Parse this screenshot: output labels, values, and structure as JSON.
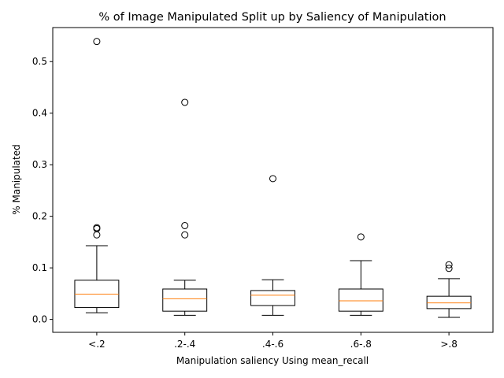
{
  "chart_data": {
    "type": "box",
    "title": "% of Image Manipulated Split up by Saliency of Manipulation",
    "xlabel": "Manipulation saliency Using mean_recall",
    "ylabel": "% Manipulated",
    "categories": [
      "<.2",
      ".2-.4",
      ".4-.6",
      ".6-.8",
      ">.8"
    ],
    "ylim": [
      -0.025,
      0.566
    ],
    "yticks": [
      0.0,
      0.1,
      0.2,
      0.3,
      0.4,
      0.5
    ],
    "ytick_labels": [
      "0.0",
      "0.1",
      "0.2",
      "0.3",
      "0.4",
      "0.5"
    ],
    "grid": false,
    "colors": {
      "box": "#000000",
      "median": "#ff7f0e",
      "flier": "#000000"
    },
    "boxes": [
      {
        "category": "<.2",
        "whisker_low": 0.013,
        "q1": 0.023,
        "median": 0.049,
        "q3": 0.076,
        "whisker_high": 0.143,
        "fliers": [
          0.164,
          0.176,
          0.178,
          0.539
        ]
      },
      {
        "category": ".2-.4",
        "whisker_low": 0.008,
        "q1": 0.016,
        "median": 0.04,
        "q3": 0.059,
        "whisker_high": 0.076,
        "fliers": [
          0.164,
          0.182,
          0.421
        ]
      },
      {
        "category": ".4-.6",
        "whisker_low": 0.008,
        "q1": 0.027,
        "median": 0.047,
        "q3": 0.056,
        "whisker_high": 0.077,
        "fliers": [
          0.273
        ]
      },
      {
        "category": ".6-.8",
        "whisker_low": 0.008,
        "q1": 0.016,
        "median": 0.036,
        "q3": 0.059,
        "whisker_high": 0.114,
        "fliers": [
          0.16
        ]
      },
      {
        "category": ">.8",
        "whisker_low": 0.004,
        "q1": 0.021,
        "median": 0.032,
        "q3": 0.045,
        "whisker_high": 0.079,
        "fliers": [
          0.099,
          0.106
        ]
      }
    ]
  }
}
